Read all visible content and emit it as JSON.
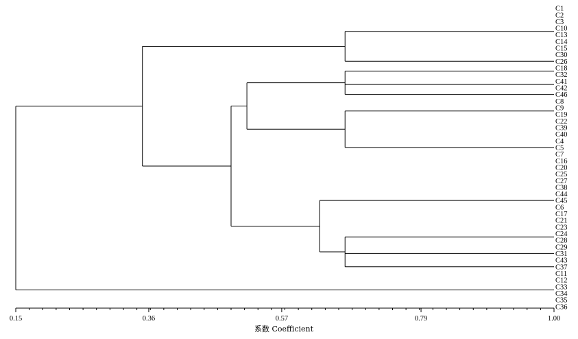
{
  "chart_data": {
    "type": "dendrogram",
    "xlabel": "系数 Coefficient",
    "xlim": [
      0.15,
      1.0
    ],
    "ticks": [
      "0.15",
      "0.36",
      "0.57",
      "0.79",
      "1.00"
    ],
    "leaves": [
      "C1",
      "C2",
      "C3",
      "C10",
      "C13",
      "C14",
      "C15",
      "C30",
      "C26",
      "C18",
      "C32",
      "C41",
      "C42",
      "C46",
      "C8",
      "C9",
      "C19",
      "C22",
      "C39",
      "C40",
      "C4",
      "C5",
      "C7",
      "C16",
      "C20",
      "C25",
      "C27",
      "C38",
      "C44",
      "C45",
      "C6",
      "C17",
      "C21",
      "C23",
      "C24",
      "C28",
      "C29",
      "C31",
      "C43",
      "C37",
      "C11",
      "C12",
      "C33",
      "C34",
      "C35",
      "C36"
    ],
    "clusters": [
      {
        "id": "A",
        "members": [
          "C1",
          "C2",
          "C3",
          "C10",
          "C13",
          "C14",
          "C15",
          "C30"
        ],
        "height": 1.0
      },
      {
        "id": "G1",
        "children": [
          "A",
          "C26"
        ],
        "height": 0.67
      },
      {
        "id": "B",
        "members": [
          "C18",
          "C32"
        ],
        "height": 1.0
      },
      {
        "id": "C",
        "members": [
          "C41",
          "C42"
        ],
        "height": 1.0
      },
      {
        "id": "G2",
        "children": [
          "B",
          "C",
          "C46"
        ],
        "height": 0.67
      },
      {
        "id": "D",
        "members": [
          "C8",
          "C9",
          "C19",
          "C22"
        ],
        "height": 1.0
      },
      {
        "id": "E",
        "members": [
          "C39",
          "C40",
          "C4",
          "C5",
          "C7",
          "C16",
          "C20"
        ],
        "height": 1.0
      },
      {
        "id": "G3",
        "children": [
          "D",
          "E"
        ],
        "height": 0.67
      },
      {
        "id": "G23",
        "children": [
          "G2",
          "G3"
        ],
        "height": 0.515
      },
      {
        "id": "F",
        "members": [
          "C25",
          "C27",
          "C38",
          "C44",
          "C45",
          "C6",
          "C17",
          "C21",
          "C23"
        ],
        "height": 1.0
      },
      {
        "id": "H",
        "members": [
          "C24",
          "C28"
        ],
        "height": 1.0
      },
      {
        "id": "I",
        "members": [
          "C29",
          "C31",
          "C43"
        ],
        "height": 1.0
      },
      {
        "id": "G4",
        "children": [
          "H",
          "I",
          "C37"
        ],
        "height": 0.67
      },
      {
        "id": "G5",
        "children": [
          "F",
          "G4"
        ],
        "height": 0.63
      },
      {
        "id": "G235",
        "children": [
          "G23",
          "G5"
        ],
        "height": 0.49
      },
      {
        "id": "G1235",
        "children": [
          "G1",
          "G235"
        ],
        "height": 0.35
      },
      {
        "id": "J",
        "members": [
          "C11",
          "C12",
          "C33",
          "C34",
          "C35",
          "C36"
        ],
        "height": 1.0
      },
      {
        "id": "ROOT",
        "children": [
          "G1235",
          "J"
        ],
        "height": 0.15
      }
    ]
  }
}
